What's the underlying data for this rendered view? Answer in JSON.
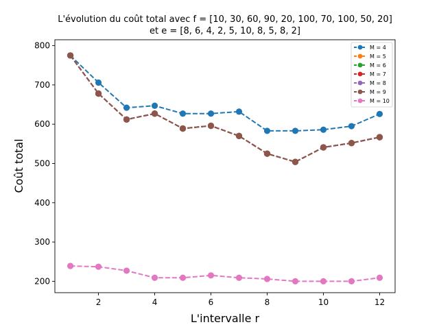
{
  "chart_data": {
    "type": "line",
    "title_line1": "L'évolution du coût total avec f = [10, 30, 60, 90, 20, 100, 70, 100, 50, 20]",
    "title_line2": "et e = [8, 6, 4, 2, 5, 10, 8, 5, 8, 2]",
    "xlabel": "L'intervalle r",
    "ylabel": "Coût total",
    "xlim": [
      0.45,
      12.55
    ],
    "ylim": [
      171,
      815
    ],
    "xticks": [
      2,
      4,
      6,
      8,
      10,
      12
    ],
    "yticks": [
      200,
      300,
      400,
      500,
      600,
      700,
      800
    ],
    "grid": false,
    "legend_position": "top-right",
    "x": [
      1,
      2,
      3,
      4,
      5,
      6,
      7,
      8,
      9,
      10,
      11,
      12
    ],
    "series": [
      {
        "name": "M = 4",
        "color": "#1f77b4",
        "values": [
          775,
          706,
          642,
          647,
          627,
          627,
          632,
          583,
          583,
          586,
          595,
          626
        ]
      },
      {
        "name": "M = 5",
        "color": "#ff7f0e",
        "values": [
          775,
          678,
          612,
          627,
          589,
          596,
          570,
          525,
          504,
          541,
          552,
          567
        ]
      },
      {
        "name": "M = 6",
        "color": "#2ca02c",
        "values": [
          775,
          678,
          612,
          627,
          589,
          596,
          570,
          525,
          504,
          541,
          552,
          567
        ]
      },
      {
        "name": "M = 7",
        "color": "#d62728",
        "values": [
          775,
          678,
          612,
          627,
          589,
          596,
          570,
          525,
          504,
          541,
          552,
          567
        ]
      },
      {
        "name": "M = 8",
        "color": "#9467bd",
        "values": [
          775,
          678,
          612,
          627,
          589,
          596,
          570,
          525,
          504,
          541,
          552,
          567
        ]
      },
      {
        "name": "M = 9",
        "color": "#8c564b",
        "values": [
          775,
          678,
          612,
          627,
          589,
          596,
          570,
          525,
          504,
          541,
          552,
          567
        ]
      },
      {
        "name": "M = 10",
        "color": "#e377c2",
        "values": [
          239,
          237,
          227,
          209,
          209,
          215,
          209,
          206,
          200,
          200,
          200,
          209
        ]
      }
    ]
  }
}
